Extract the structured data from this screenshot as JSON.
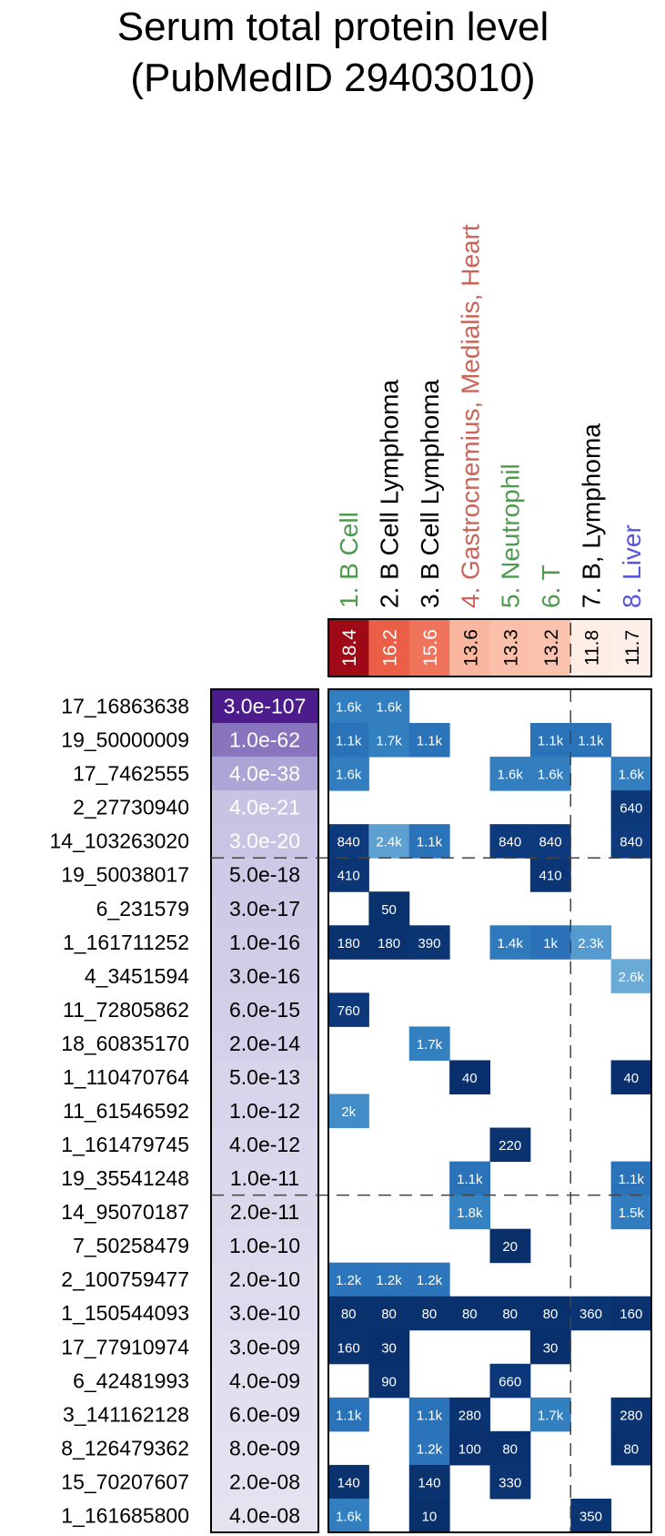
{
  "chart_data": {
    "type": "heatmap",
    "title": [
      "Serum total protein level",
      "(PubMedID 29403010)"
    ],
    "columns": [
      {
        "label": "1. B Cell",
        "color": "#4f9a4f",
        "score": "18.4",
        "score_value": 18.4
      },
      {
        "label": "2. B Cell Lymphoma",
        "color": "#000000",
        "score": "16.2",
        "score_value": 16.2
      },
      {
        "label": "3. B Cell Lymphoma",
        "color": "#000000",
        "score": "15.6",
        "score_value": 15.6
      },
      {
        "label": "4. Gastrocnemius, Medialis, Heart",
        "color": "#c9645a",
        "score": "13.6",
        "score_value": 13.6
      },
      {
        "label": "5. Neutrophil",
        "color": "#4f9a4f",
        "score": "13.3",
        "score_value": 13.3
      },
      {
        "label": "6. T",
        "color": "#4f9a4f",
        "score": "13.2",
        "score_value": 13.2
      },
      {
        "label": "7. B, Lymphoma",
        "color": "#000000",
        "score": "11.8",
        "score_value": 11.8
      },
      {
        "label": "8. Liver",
        "color": "#5555dd",
        "score": "11.7",
        "score_value": 11.7
      }
    ],
    "score_color_range": [
      11.7,
      18.4
    ],
    "rows": [
      {
        "snp": "17_16863638",
        "pvalue": "3.0e-107",
        "logp": 106.5,
        "cells": [
          "1.6k",
          "1.6k",
          "",
          "",
          "",
          "",
          "",
          ""
        ]
      },
      {
        "snp": "19_50000009",
        "pvalue": "1.0e-62",
        "logp": 62.0,
        "cells": [
          "1.1k",
          "1.7k",
          "1.1k",
          "",
          "",
          "1.1k",
          "1.1k",
          ""
        ]
      },
      {
        "snp": "17_7462555",
        "pvalue": "4.0e-38",
        "logp": 37.4,
        "cells": [
          "1.6k",
          "",
          "",
          "",
          "1.6k",
          "1.6k",
          "",
          "1.6k"
        ]
      },
      {
        "snp": "2_27730940",
        "pvalue": "4.0e-21",
        "logp": 20.4,
        "cells": [
          "",
          "",
          "",
          "",
          "",
          "",
          "",
          "640"
        ]
      },
      {
        "snp": "14_103263020",
        "pvalue": "3.0e-20",
        "logp": 19.5,
        "cells": [
          "840",
          "2.4k",
          "1.1k",
          "",
          "840",
          "840",
          "",
          "840"
        ]
      },
      {
        "snp": "19_50038017",
        "pvalue": "5.0e-18",
        "logp": 17.3,
        "cells": [
          "410",
          "",
          "",
          "",
          "",
          "410",
          "",
          ""
        ]
      },
      {
        "snp": "6_231579",
        "pvalue": "3.0e-17",
        "logp": 16.5,
        "cells": [
          "",
          "50",
          "",
          "",
          "",
          "",
          "",
          ""
        ]
      },
      {
        "snp": "1_161711252",
        "pvalue": "1.0e-16",
        "logp": 16.0,
        "cells": [
          "180",
          "180",
          "390",
          "",
          "1.4k",
          "1k",
          "2.3k",
          ""
        ]
      },
      {
        "snp": "4_3451594",
        "pvalue": "3.0e-16",
        "logp": 15.5,
        "cells": [
          "",
          "",
          "",
          "",
          "",
          "",
          "",
          "2.6k"
        ]
      },
      {
        "snp": "11_72805862",
        "pvalue": "6.0e-15",
        "logp": 14.2,
        "cells": [
          "760",
          "",
          "",
          "",
          "",
          "",
          "",
          ""
        ]
      },
      {
        "snp": "18_60835170",
        "pvalue": "2.0e-14",
        "logp": 13.7,
        "cells": [
          "",
          "",
          "1.7k",
          "",
          "",
          "",
          "",
          ""
        ]
      },
      {
        "snp": "1_110470764",
        "pvalue": "5.0e-13",
        "logp": 12.3,
        "cells": [
          "",
          "",
          "",
          "40",
          "",
          "",
          "",
          "40"
        ]
      },
      {
        "snp": "11_61546592",
        "pvalue": "1.0e-12",
        "logp": 12.0,
        "cells": [
          "2k",
          "",
          "",
          "",
          "",
          "",
          "",
          ""
        ]
      },
      {
        "snp": "1_161479745",
        "pvalue": "4.0e-12",
        "logp": 11.4,
        "cells": [
          "",
          "",
          "",
          "",
          "220",
          "",
          "",
          ""
        ]
      },
      {
        "snp": "19_35541248",
        "pvalue": "1.0e-11",
        "logp": 11.0,
        "cells": [
          "",
          "",
          "",
          "1.1k",
          "",
          "",
          "",
          "1.1k"
        ]
      },
      {
        "snp": "14_95070187",
        "pvalue": "2.0e-11",
        "logp": 10.7,
        "cells": [
          "",
          "",
          "",
          "1.8k",
          "",
          "",
          "",
          "1.5k"
        ]
      },
      {
        "snp": "7_50258479",
        "pvalue": "1.0e-10",
        "logp": 10.0,
        "cells": [
          "",
          "",
          "",
          "",
          "20",
          "",
          "",
          ""
        ]
      },
      {
        "snp": "2_100759477",
        "pvalue": "2.0e-10",
        "logp": 9.7,
        "cells": [
          "1.2k",
          "1.2k",
          "1.2k",
          "",
          "",
          "",
          "",
          ""
        ]
      },
      {
        "snp": "1_150544093",
        "pvalue": "3.0e-10",
        "logp": 9.5,
        "cells": [
          "80",
          "80",
          "80",
          "80",
          "80",
          "80",
          "360",
          "160"
        ]
      },
      {
        "snp": "17_77910974",
        "pvalue": "3.0e-09",
        "logp": 8.5,
        "cells": [
          "160",
          "30",
          "",
          "",
          "",
          "30",
          "",
          ""
        ]
      },
      {
        "snp": "6_42481993",
        "pvalue": "4.0e-09",
        "logp": 8.4,
        "cells": [
          "",
          "90",
          "",
          "",
          "660",
          "",
          "",
          ""
        ]
      },
      {
        "snp": "3_141162128",
        "pvalue": "6.0e-09",
        "logp": 8.2,
        "cells": [
          "1.1k",
          "",
          "1.1k",
          "280",
          "",
          "1.7k",
          "",
          "280"
        ]
      },
      {
        "snp": "8_126479362",
        "pvalue": "8.0e-09",
        "logp": 8.1,
        "cells": [
          "",
          "",
          "1.2k",
          "100",
          "80",
          "",
          "",
          "80"
        ]
      },
      {
        "snp": "15_70207607",
        "pvalue": "2.0e-08",
        "logp": 7.7,
        "cells": [
          "140",
          "",
          "140",
          "",
          "330",
          "",
          "",
          ""
        ]
      },
      {
        "snp": "1_161685800",
        "pvalue": "4.0e-08",
        "logp": 7.4,
        "cells": [
          "1.6k",
          "",
          "10",
          "",
          "",
          "",
          "350",
          ""
        ]
      }
    ],
    "dashed_row_breaks_after": [
      5,
      15
    ],
    "dashed_column_break_after": 5
  }
}
